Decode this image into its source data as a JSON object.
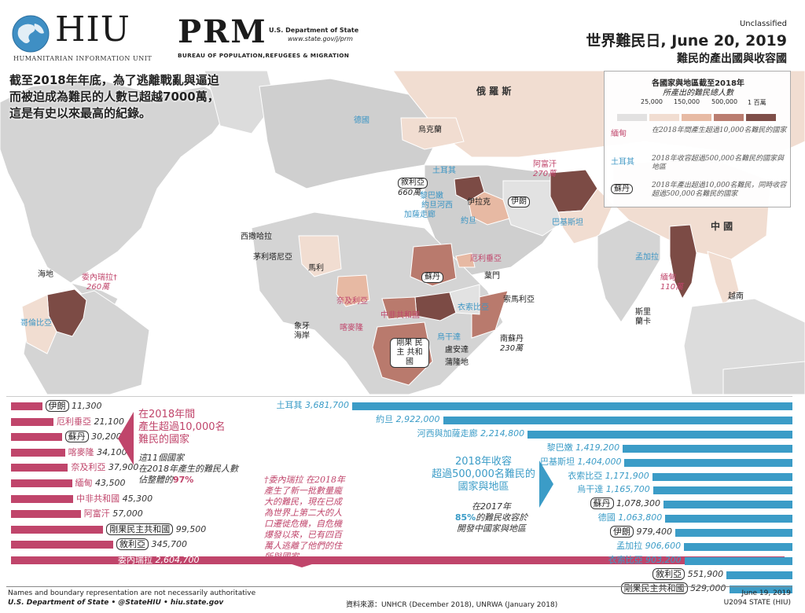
{
  "header": {
    "hiu_word": "HIU",
    "hiu_sub": "HUMANITARIAN INFORMATION UNIT",
    "prm_word": "PRM",
    "prm_dept": "U.S. Department of State",
    "prm_url": "www.state.gov/j/prm",
    "prm_bureau": "BUREAU OF POPULATION,REFUGEES & MIGRATION",
    "classification": "Unclassified",
    "title": "世界難民日, June 20, 2019",
    "subtitle": "難民的產出國與收容國"
  },
  "intro": [
    "截至2018年年底，為了逃離戰亂與逼迫",
    "而被迫成為難民的人數已超越7000萬，",
    "這是有史以來最高的紀錄。"
  ],
  "legend": {
    "head1": "各國家與地區截至2018年",
    "head2": "所產出的難民總人數",
    "ticks": [
      "25,000",
      "150,000",
      "500,000",
      "1 百萬"
    ],
    "ramp": [
      "#e2e2e2",
      "#f1ddd1",
      "#e7b9a3",
      "#b97a6d",
      "#7c4b45"
    ],
    "rows": [
      {
        "key": "緬甸",
        "desc": "在2018年間產生超過10,000名難民的國家",
        "color": "#c0456b"
      },
      {
        "key": "土耳其",
        "desc": "2018年收容超過500,000名難民的國家與地區",
        "color": "#3b95c4"
      },
      {
        "key": "蘇丹",
        "desc": "2018年產出超過10,000名難民，同時收容超過500,000名難民的國家",
        "color": "#222"
      }
    ]
  },
  "map_labels": {
    "russia": "俄 羅 斯",
    "germany": "德國",
    "ukraine": "烏克蘭",
    "turkey": "土耳其",
    "syria": "敘利亞",
    "syria_val": "660萬",
    "lebanon": "黎巴嫩",
    "jordan_west": "約旦河西",
    "gaza": "加薩走廊",
    "jordan": "約旦",
    "iraq": "伊拉克",
    "iran": "伊朗",
    "afghanistan": "阿富汗",
    "afghanistan_val": "270萬",
    "pakistan": "巴基斯坦",
    "china": "中 國",
    "bangladesh": "孟加拉",
    "myanmar": "緬甸",
    "myanmar_val": "110萬",
    "vietnam": "越南",
    "srilanka": "斯里\n蘭卡",
    "western_sahara": "西撒哈拉",
    "mauritania": "茅利塔尼亞",
    "mali": "馬利",
    "nigeria": "奈及利亞",
    "cameroon": "喀麥隆",
    "cote": "象牙\n海岸",
    "car": "中非共和國",
    "sudan": "蘇丹",
    "eritrea": "厄利垂亞",
    "yemen": "葉門",
    "ethiopia": "衣索比亞",
    "somalia": "索馬利亞",
    "south_sudan": "南蘇丹",
    "south_sudan_val": "230萬",
    "uganda": "烏干達",
    "rwanda": "盧安達",
    "burundi": "蒲隆地",
    "drc": "剛果\n民主\n共和國",
    "haiti": "海地",
    "venezuela": "委內瑞拉",
    "venezuela_val": "260萬",
    "colombia": "哥倫比亞"
  },
  "left_bars": [
    {
      "name": "伊朗",
      "value": "11,300",
      "boxed": true,
      "n": 11300
    },
    {
      "name": "厄利垂亞",
      "value": "21,100",
      "boxed": false,
      "n": 21100
    },
    {
      "name": "蘇丹",
      "value": "30,200",
      "boxed": true,
      "n": 30200
    },
    {
      "name": "喀麥隆",
      "value": "34,100",
      "boxed": false,
      "n": 34100
    },
    {
      "name": "奈及利亞",
      "value": "37,900",
      "boxed": false,
      "n": 37900
    },
    {
      "name": "緬甸",
      "value": "43,500",
      "boxed": false,
      "n": 43500
    },
    {
      "name": "中非共和國",
      "value": "45,300",
      "boxed": false,
      "n": 45300
    },
    {
      "name": "阿富汗",
      "value": "57,000",
      "boxed": false,
      "n": 57000
    },
    {
      "name": "剛果民主共和國",
      "value": "99,500",
      "boxed": true,
      "n": 99500
    },
    {
      "name": "敘利亞",
      "value": "345,700",
      "boxed": true,
      "n": 345700
    },
    {
      "name": "委內瑞拉",
      "value": "2,604,700",
      "boxed": false,
      "n": 2604700
    }
  ],
  "right_bars": [
    {
      "name": "土耳其",
      "value": "3,681,700",
      "boxed": false,
      "n": 3681700
    },
    {
      "name": "約旦",
      "value": "2,922,000",
      "boxed": false,
      "n": 2922000
    },
    {
      "name": "河西與加薩走廊",
      "value": "2,214,800",
      "boxed": false,
      "n": 2214800
    },
    {
      "name": "黎巴嫩",
      "value": "1,419,200",
      "boxed": false,
      "n": 1419200
    },
    {
      "name": "巴基斯坦",
      "value": "1,404,000",
      "boxed": false,
      "n": 1404000
    },
    {
      "name": "衣索比亞",
      "value": "1,171,900",
      "boxed": false,
      "n": 1171900
    },
    {
      "name": "烏干達",
      "value": "1,165,700",
      "boxed": false,
      "n": 1165700
    },
    {
      "name": "蘇丹",
      "value": "1,078,300",
      "boxed": true,
      "n": 1078300
    },
    {
      "name": "德國",
      "value": "1,063,800",
      "boxed": false,
      "n": 1063800
    },
    {
      "name": "伊朗",
      "value": "979,400",
      "boxed": true,
      "n": 979400
    },
    {
      "name": "孟加拉",
      "value": "906,600",
      "boxed": false,
      "n": 906600
    },
    {
      "name": "衣索比亞",
      "value": "903,200",
      "boxed": false,
      "n": 903200
    },
    {
      "name": "敘利亞",
      "value": "551,900",
      "boxed": true,
      "n": 551900
    },
    {
      "name": "剛果民主共和國",
      "value": "529,000",
      "boxed": true,
      "n": 529000
    }
  ],
  "notes": {
    "left_title": [
      "在2018年間",
      "產生超過10,000名",
      "難民的國家"
    ],
    "left_body": [
      "這11個國家",
      "在2018年產生的難民人數",
      "佔整體的"
    ],
    "left_pct": "97%",
    "mid": "†委內瑞拉 在2018年產生了新一批數量龐大的難民，現在已成為世界上第二大的人口遷徙危機，自危機爆發以來，已有四百萬人逃離了他們的住所與國家。",
    "right_title": [
      "2018年收容",
      "超過500,000名難民的",
      "國家與地區"
    ],
    "right_body_1": "在2017年",
    "right_pct": "85%",
    "right_body_2": "的難民收容於",
    "right_body_3": "開發中國家與地區"
  },
  "footer": {
    "disclaimer": "Names and boundary representation are not necessarily authoritative",
    "dept": "U.S. Department of State • @StateHIU • hiu.state.gov",
    "source": "資料來源：UNHCR (December 2018), UNRWA (January 2018)",
    "date": "June 19, 2019",
    "code": "U2094 STATE (HIU)"
  }
}
